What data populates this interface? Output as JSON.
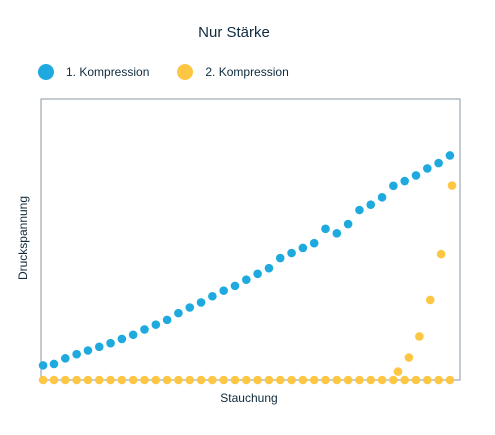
{
  "chart_data": {
    "type": "scatter",
    "title": "Nur Stärke",
    "xlabel": "Stauchung",
    "ylabel": "Druckspannung",
    "grid": false,
    "legend_position": "top-left",
    "xlim": [
      0,
      1
    ],
    "ylim": [
      0,
      1
    ],
    "x": [
      0.005,
      0.031,
      0.058,
      0.085,
      0.112,
      0.139,
      0.166,
      0.193,
      0.22,
      0.247,
      0.274,
      0.301,
      0.328,
      0.355,
      0.382,
      0.409,
      0.436,
      0.463,
      0.49,
      0.517,
      0.544,
      0.571,
      0.598,
      0.625,
      0.652,
      0.679,
      0.706,
      0.733,
      0.76,
      0.787,
      0.814,
      0.841,
      0.868,
      0.895,
      0.922,
      0.949,
      0.976
    ],
    "series": [
      {
        "name": "1. Kompression",
        "color": "#1eaadf",
        "values": [
          0.052,
          0.057,
          0.077,
          0.092,
          0.105,
          0.118,
          0.131,
          0.146,
          0.161,
          0.18,
          0.197,
          0.214,
          0.238,
          0.258,
          0.276,
          0.298,
          0.318,
          0.335,
          0.357,
          0.378,
          0.398,
          0.434,
          0.452,
          0.47,
          0.487,
          0.538,
          0.522,
          0.555,
          0.605,
          0.624,
          0.65,
          0.691,
          0.708,
          0.728,
          0.753,
          0.772,
          0.799
        ]
      },
      {
        "name": "2. Kompression",
        "color": "#fdc743",
        "values": [
          0.0,
          0.0,
          0.0,
          0.0,
          0.0,
          0.0,
          0.0,
          0.0,
          0.0,
          0.0,
          0.0,
          0.0,
          0.0,
          0.0,
          0.0,
          0.0,
          0.0,
          0.0,
          0.0,
          0.0,
          0.0,
          0.0,
          0.0,
          0.0,
          0.0,
          0.0,
          0.0,
          0.0,
          0.0,
          0.0,
          0.0,
          0.0,
          0.0,
          0.0,
          0.0,
          0.0,
          0.0
        ],
        "extra_x": [
          0.852,
          0.878,
          0.903,
          0.929,
          0.955,
          0.981
        ],
        "extra_values": [
          0.03,
          0.08,
          0.155,
          0.285,
          0.448,
          0.692
        ]
      }
    ]
  }
}
